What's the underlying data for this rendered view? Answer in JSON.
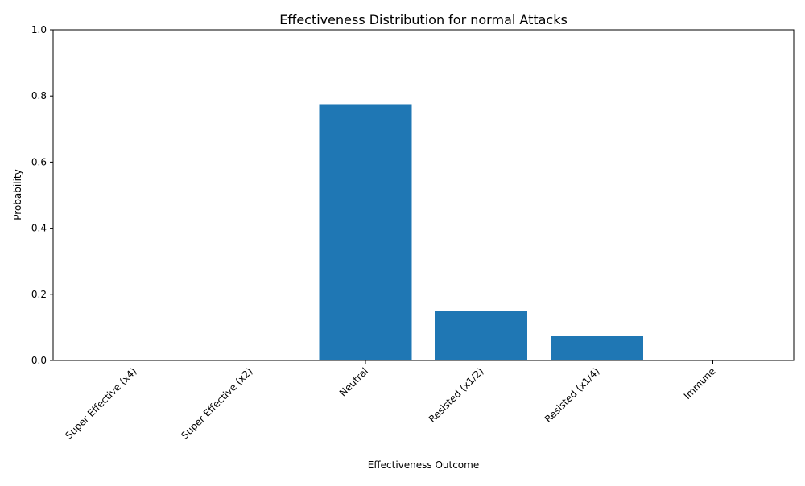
{
  "chart_data": {
    "type": "bar",
    "title": "Effectiveness Distribution for normal Attacks",
    "xlabel": "Effectiveness Outcome",
    "ylabel": "Probability",
    "categories": [
      "Super Effective (x4)",
      "Super Effective (x2)",
      "Neutral",
      "Resisted (x1/2)",
      "Resisted (x1/4)",
      "Immune"
    ],
    "values": [
      0.0,
      0.0,
      0.775,
      0.15,
      0.075,
      0.0
    ],
    "ylim": [
      0,
      1.0
    ],
    "yticks": [
      "0.0",
      "0.2",
      "0.4",
      "0.6",
      "0.8",
      "1.0"
    ],
    "grid": false,
    "bar_color": "#1f77b4",
    "tick_rotation_deg": 45
  }
}
